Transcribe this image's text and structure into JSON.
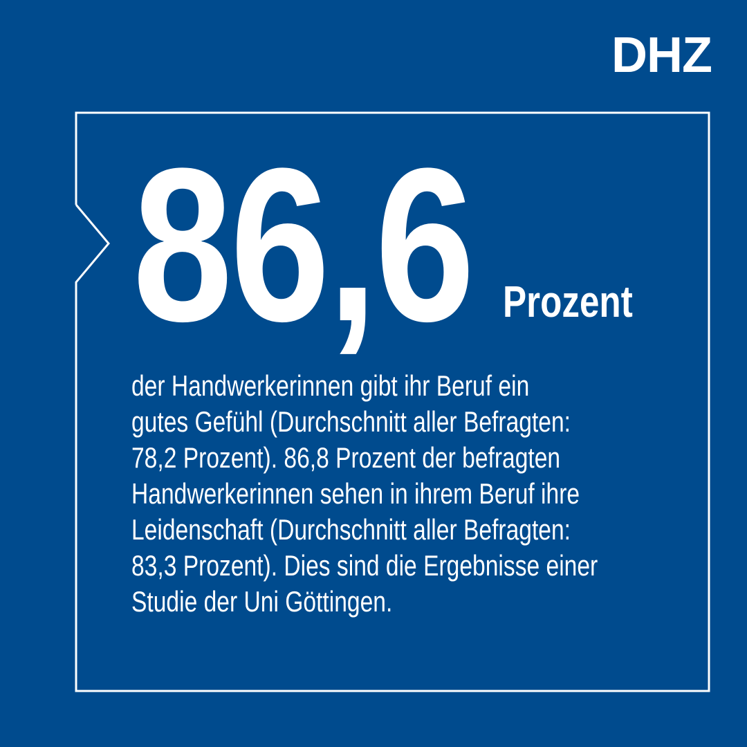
{
  "brand": {
    "logo": "DHZ",
    "background_color": "#004b8e",
    "text_color": "#ffffff"
  },
  "headline": {
    "value": "86,6",
    "unit": "Prozent"
  },
  "body_lines": [
    "der Handwerkerinnen gibt ihr Beruf ein",
    "gutes Gefühl (Durchschnitt aller Befragten:",
    "78,2 Prozent). 86,8 Prozent der befragten",
    "Handwerkerinnen sehen in ihrem Beruf ihre",
    "Leidenschaft (Durchschnitt aller Befragten:",
    "83,3 Prozent). Dies sind die Ergebnisse einer",
    "Studie der Uni Göttingen."
  ]
}
